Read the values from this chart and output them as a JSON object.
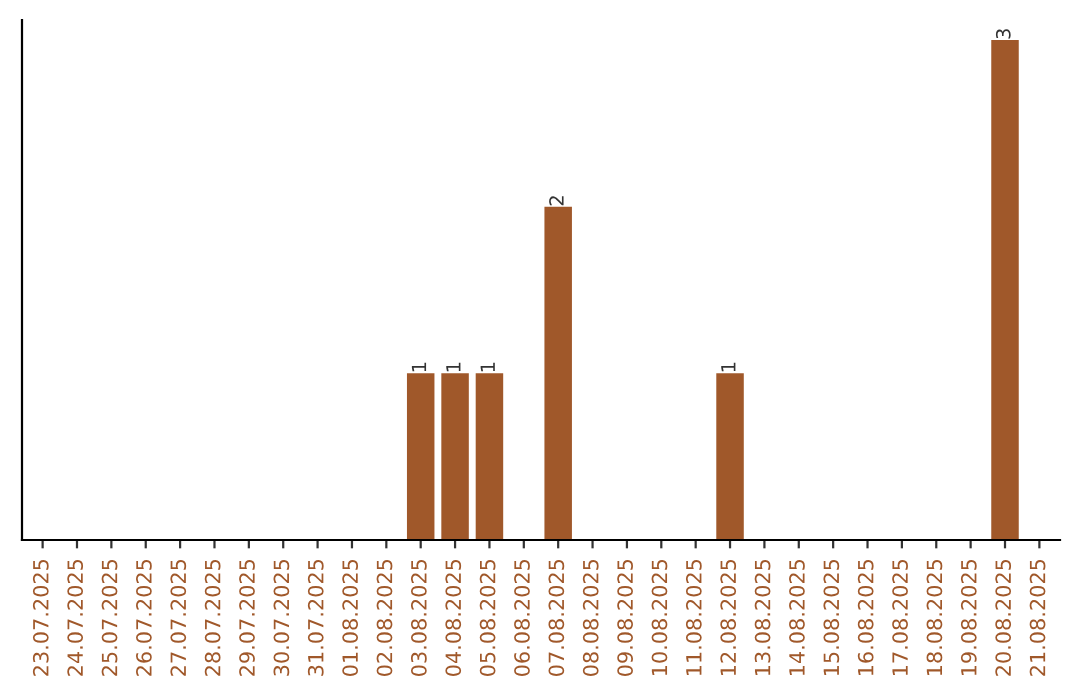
{
  "chart_data": {
    "type": "bar",
    "categories": [
      "23.07.2025",
      "24.07.2025",
      "25.07.2025",
      "26.07.2025",
      "27.07.2025",
      "28.07.2025",
      "29.07.2025",
      "30.07.2025",
      "31.07.2025",
      "01.08.2025",
      "02.08.2025",
      "03.08.2025",
      "04.08.2025",
      "05.08.2025",
      "06.08.2025",
      "07.08.2025",
      "08.08.2025",
      "09.08.2025",
      "10.08.2025",
      "11.08.2025",
      "12.08.2025",
      "13.08.2025",
      "14.08.2025",
      "15.08.2025",
      "16.08.2025",
      "17.08.2025",
      "18.08.2025",
      "19.08.2025",
      "20.08.2025",
      "21.08.2025"
    ],
    "values": [
      0,
      0,
      0,
      0,
      0,
      0,
      0,
      0,
      0,
      0,
      0,
      1,
      1,
      1,
      0,
      2,
      0,
      0,
      0,
      0,
      1,
      0,
      0,
      0,
      0,
      0,
      0,
      0,
      3,
      0
    ],
    "value_labels": [
      null,
      null,
      null,
      null,
      null,
      null,
      null,
      null,
      null,
      null,
      null,
      "1",
      "1",
      "1",
      null,
      "2",
      null,
      null,
      null,
      null,
      "1",
      null,
      null,
      null,
      null,
      null,
      null,
      null,
      "3",
      null
    ],
    "color": "#a0582a",
    "ylim": [
      0,
      3.12
    ],
    "tick_labels": "x",
    "grid": false,
    "legend": false
  }
}
